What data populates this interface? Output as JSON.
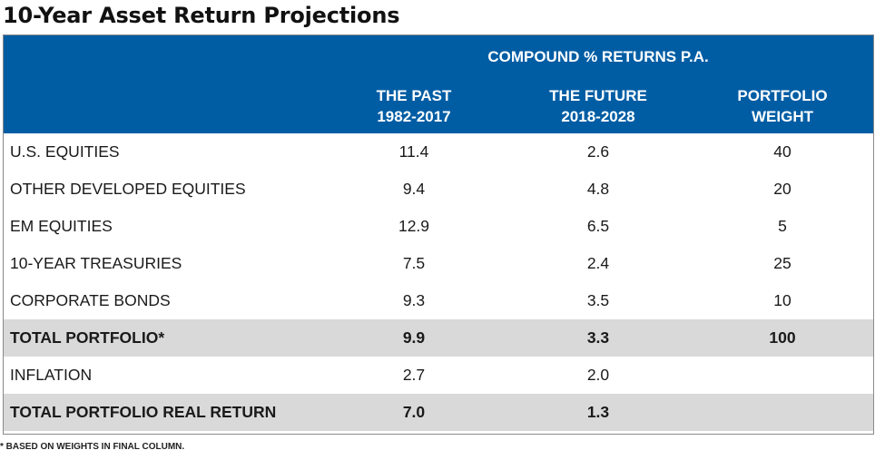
{
  "title": "10-Year Asset Return Projections",
  "chart_data": {
    "type": "table",
    "group_header": "COMPOUND % RETURNS P.A.",
    "columns": [
      {
        "line1": "",
        "line2": ""
      },
      {
        "line1": "THE PAST",
        "line2": "1982-2017"
      },
      {
        "line1": "THE FUTURE",
        "line2": "2018-2028"
      },
      {
        "line1": "PORTFOLIO",
        "line2": "WEIGHT"
      }
    ],
    "rows": [
      {
        "label": "U.S. EQUITIES",
        "past": "11.4",
        "future": "2.6",
        "weight": "40",
        "total": false
      },
      {
        "label": "OTHER DEVELOPED EQUITIES",
        "past": "9.4",
        "future": "4.8",
        "weight": "20",
        "total": false
      },
      {
        "label": "EM EQUITIES",
        "past": "12.9",
        "future": "6.5",
        "weight": "5",
        "total": false
      },
      {
        "label": "10-YEAR TREASURIES",
        "past": "7.5",
        "future": "2.4",
        "weight": "25",
        "total": false
      },
      {
        "label": "CORPORATE BONDS",
        "past": "9.3",
        "future": "3.5",
        "weight": "10",
        "total": false
      },
      {
        "label": "TOTAL PORTFOLIO*",
        "past": "9.9",
        "future": "3.3",
        "weight": "100",
        "total": true
      },
      {
        "label": "INFLATION",
        "past": "2.7",
        "future": "2.0",
        "weight": "",
        "total": false
      },
      {
        "label": "TOTAL PORTFOLIO REAL RETURN",
        "past": "7.0",
        "future": "1.3",
        "weight": "",
        "total": true
      }
    ]
  },
  "footnote": "* BASED ON WEIGHTS IN FINAL COLUMN.",
  "colors": {
    "header_blue": "#005da4",
    "total_row_gray": "#d9d9d9"
  }
}
